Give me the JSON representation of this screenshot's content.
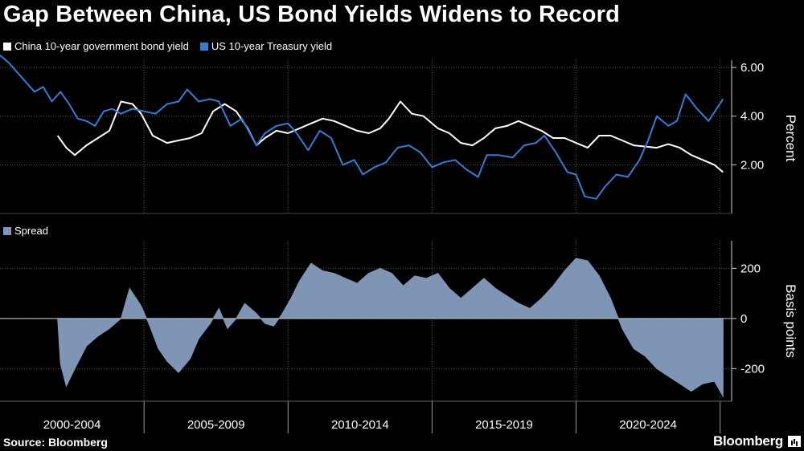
{
  "title": "Gap Between China, US Bond Yields Widens to Record",
  "source": "Source: Bloomberg",
  "brand": "Bloomberg",
  "colors": {
    "background": "#000000",
    "china": "#ffffff",
    "us": "#2f7ed8",
    "spread": "#7f95b6",
    "grid": "#555555"
  },
  "chart_data": [
    {
      "type": "line",
      "ylabel": "Percent",
      "ylim": [
        0,
        6.3
      ],
      "yticks": [
        2,
        4,
        6
      ],
      "ytick_labels": [
        "2.00",
        "4.00",
        "6.00"
      ],
      "grid": true,
      "legend_placement": "top-left",
      "x_unit": "year",
      "series": [
        {
          "name": "China 10-year government bond yield",
          "color": "#ffffff",
          "x": [
            2002.0,
            2002.3,
            2002.6,
            2003.0,
            2003.4,
            2003.8,
            2004.2,
            2004.6,
            2004.9,
            2005.3,
            2005.8,
            2006.2,
            2006.6,
            2007.0,
            2007.4,
            2007.8,
            2008.2,
            2008.6,
            2008.9,
            2009.2,
            2009.6,
            2010.0,
            2010.4,
            2010.8,
            2011.2,
            2011.6,
            2012.0,
            2012.4,
            2012.8,
            2013.2,
            2013.5,
            2013.9,
            2014.3,
            2014.7,
            2015.2,
            2015.6,
            2016.0,
            2016.4,
            2016.8,
            2017.2,
            2017.6,
            2018.0,
            2018.4,
            2018.8,
            2019.2,
            2019.6,
            2020.0,
            2020.4,
            2020.8,
            2021.2,
            2021.6,
            2022.0,
            2022.4,
            2022.8,
            2023.2,
            2023.6,
            2024.0,
            2024.4,
            2024.8,
            2025.1
          ],
          "values": [
            3.2,
            2.7,
            2.4,
            2.8,
            3.1,
            3.4,
            4.6,
            4.5,
            4.1,
            3.2,
            2.9,
            3.0,
            3.1,
            3.3,
            4.2,
            4.5,
            4.2,
            3.5,
            2.8,
            3.1,
            3.4,
            3.3,
            3.5,
            3.7,
            3.9,
            3.8,
            3.6,
            3.4,
            3.3,
            3.5,
            3.9,
            4.6,
            4.1,
            4.0,
            3.5,
            3.3,
            2.9,
            2.8,
            3.1,
            3.5,
            3.6,
            3.8,
            3.6,
            3.4,
            3.1,
            3.1,
            2.9,
            2.7,
            3.2,
            3.2,
            3.0,
            2.8,
            2.75,
            2.7,
            2.85,
            2.7,
            2.4,
            2.2,
            2.0,
            1.7
          ]
        },
        {
          "name": "US 10-year Treasury yield",
          "color": "#2f7ed8",
          "x": [
            2000.0,
            2000.3,
            2000.6,
            2000.9,
            2001.2,
            2001.5,
            2001.8,
            2002.1,
            2002.4,
            2002.7,
            2003.0,
            2003.3,
            2003.6,
            2003.9,
            2004.2,
            2004.6,
            2005.0,
            2005.4,
            2005.8,
            2006.2,
            2006.5,
            2006.9,
            2007.3,
            2007.6,
            2008.0,
            2008.4,
            2008.9,
            2009.2,
            2009.6,
            2010.0,
            2010.3,
            2010.7,
            2011.1,
            2011.5,
            2011.9,
            2012.3,
            2012.6,
            2013.0,
            2013.4,
            2013.8,
            2014.2,
            2014.6,
            2015.0,
            2015.4,
            2015.8,
            2016.2,
            2016.6,
            2016.9,
            2017.3,
            2017.8,
            2018.2,
            2018.6,
            2018.9,
            2019.3,
            2019.7,
            2020.0,
            2020.3,
            2020.7,
            2021.0,
            2021.4,
            2021.8,
            2022.2,
            2022.5,
            2022.8,
            2023.2,
            2023.5,
            2023.8,
            2024.2,
            2024.6,
            2025.1
          ],
          "values": [
            6.5,
            6.2,
            5.8,
            5.4,
            5.0,
            5.2,
            4.6,
            5.0,
            4.5,
            3.9,
            3.8,
            3.6,
            4.2,
            4.3,
            4.1,
            4.3,
            4.2,
            4.1,
            4.5,
            4.6,
            5.1,
            4.6,
            4.7,
            4.6,
            3.6,
            3.9,
            2.8,
            3.3,
            3.6,
            3.7,
            3.3,
            2.6,
            3.4,
            3.1,
            2.0,
            2.2,
            1.6,
            1.9,
            2.1,
            2.7,
            2.8,
            2.5,
            1.9,
            2.1,
            2.2,
            1.8,
            1.5,
            2.4,
            2.4,
            2.3,
            2.8,
            2.9,
            3.2,
            2.5,
            1.7,
            1.6,
            0.7,
            0.6,
            1.1,
            1.6,
            1.5,
            2.2,
            3.0,
            4.0,
            3.6,
            3.8,
            4.9,
            4.3,
            3.8,
            4.7
          ]
        }
      ]
    },
    {
      "type": "area",
      "ylabel": "Basis points",
      "ylim": [
        -330,
        310
      ],
      "yticks": [
        -200,
        0,
        200
      ],
      "ytick_labels": [
        "-200",
        "0",
        "200"
      ],
      "grid": true,
      "legend_placement": "top-left",
      "x_unit": "year",
      "xticks": [
        2000,
        2005,
        2010,
        2015,
        2020,
        2025
      ],
      "period_labels": [
        "2000-2004",
        "2005-2009",
        "2010-2014",
        "2015-2019",
        "2020-2024"
      ],
      "series": [
        {
          "name": "Spread",
          "color": "#7f95b6",
          "x": [
            2000.0,
            2002.0,
            2002.1,
            2002.3,
            2002.6,
            2003.0,
            2003.4,
            2003.8,
            2004.2,
            2004.5,
            2004.9,
            2005.2,
            2005.5,
            2005.8,
            2006.2,
            2006.6,
            2006.9,
            2007.3,
            2007.6,
            2007.9,
            2008.2,
            2008.5,
            2008.9,
            2009.2,
            2009.5,
            2009.8,
            2010.1,
            2010.4,
            2010.8,
            2011.2,
            2011.6,
            2012.0,
            2012.4,
            2012.8,
            2013.2,
            2013.6,
            2014.0,
            2014.4,
            2014.8,
            2015.2,
            2015.6,
            2016.0,
            2016.4,
            2016.8,
            2017.2,
            2017.6,
            2018.0,
            2018.4,
            2018.8,
            2019.2,
            2019.6,
            2020.0,
            2020.4,
            2020.8,
            2021.2,
            2021.6,
            2022.0,
            2022.4,
            2022.8,
            2023.2,
            2023.6,
            2024.0,
            2024.4,
            2024.8,
            2025.1,
            2025.1
          ],
          "values": [
            0,
            0,
            -180,
            -270,
            -200,
            -110,
            -70,
            -40,
            0,
            120,
            50,
            -30,
            -120,
            -170,
            -215,
            -160,
            -80,
            -20,
            40,
            -40,
            0,
            60,
            20,
            -20,
            -30,
            20,
            80,
            150,
            220,
            190,
            180,
            160,
            140,
            180,
            200,
            180,
            130,
            170,
            160,
            180,
            120,
            80,
            120,
            160,
            120,
            90,
            60,
            40,
            80,
            130,
            190,
            240,
            230,
            170,
            80,
            -40,
            -120,
            -150,
            -200,
            -230,
            -260,
            -290,
            -260,
            -250,
            -310,
            0
          ]
        }
      ]
    }
  ]
}
